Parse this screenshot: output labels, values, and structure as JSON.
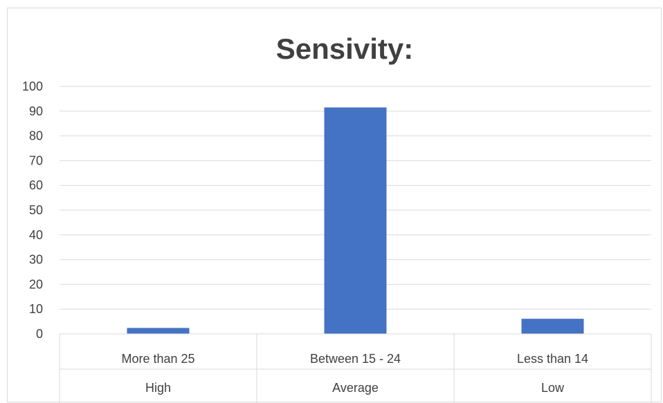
{
  "chart_data": {
    "type": "bar",
    "title": "Sensivity:",
    "categories": [
      "More than 25",
      "Between 15 - 24",
      "Less than 14"
    ],
    "category_groups": [
      "High",
      "Average",
      "Low"
    ],
    "values": [
      2.4,
      91.5,
      6.1
    ],
    "ylim": [
      0,
      100
    ],
    "yticks": [
      0,
      10,
      20,
      30,
      40,
      50,
      60,
      70,
      80,
      90,
      100
    ],
    "grid": true,
    "legend": "none",
    "bar_color": "#4472c4",
    "grid_color": "#d9d9d9",
    "text_color": "#404040"
  }
}
